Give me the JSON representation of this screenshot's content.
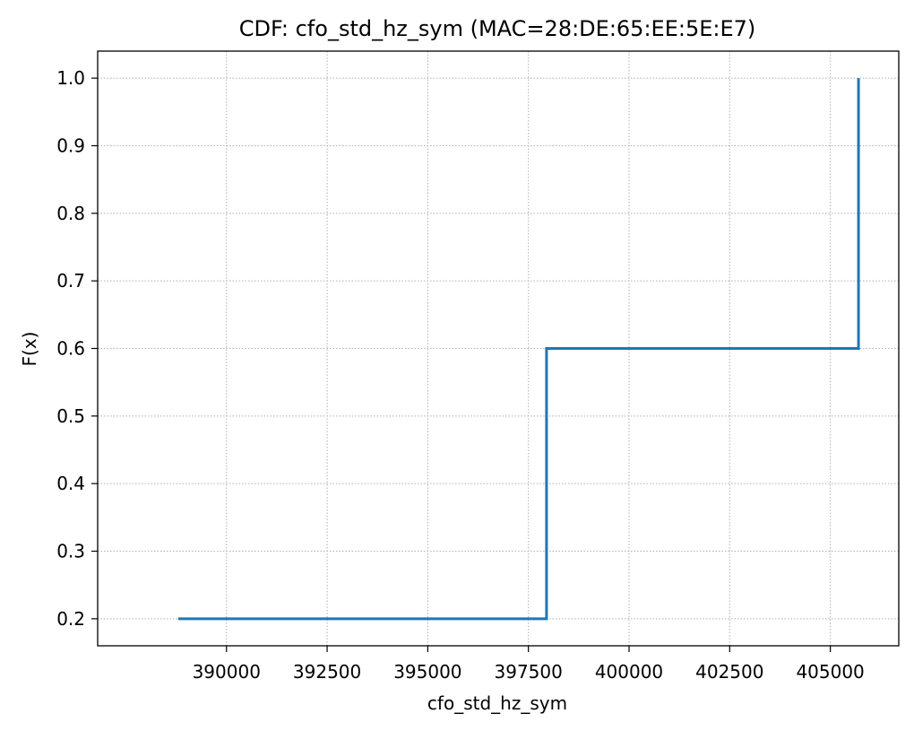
{
  "chart_data": {
    "type": "line",
    "title": "CDF: cfo_std_hz_sym (MAC=28:DE:65:EE:5E:E7)",
    "xlabel": "cfo_std_hz_sym",
    "ylabel": "F(x)",
    "xlim": [
      386800,
      406700
    ],
    "ylim": [
      0.16,
      1.04
    ],
    "xticks": [
      390000,
      392500,
      395000,
      397500,
      400000,
      402500,
      405000
    ],
    "xtick_labels": [
      "390000",
      "392500",
      "395000",
      "397500",
      "400000",
      "402500",
      "405000"
    ],
    "yticks": [
      0.2,
      0.3,
      0.4,
      0.5,
      0.6,
      0.7,
      0.8,
      0.9,
      1.0
    ],
    "ytick_labels": [
      "0.2",
      "0.3",
      "0.4",
      "0.5",
      "0.6",
      "0.7",
      "0.8",
      "0.9",
      "1.0"
    ],
    "grid": true,
    "drawstyle": "steps-post",
    "series": [
      {
        "color": "#1f77b4",
        "x": [
          388800,
          397950,
          397950,
          405700,
          405700
        ],
        "y": [
          0.2,
          0.2,
          0.6,
          0.6,
          1.0
        ]
      }
    ]
  }
}
